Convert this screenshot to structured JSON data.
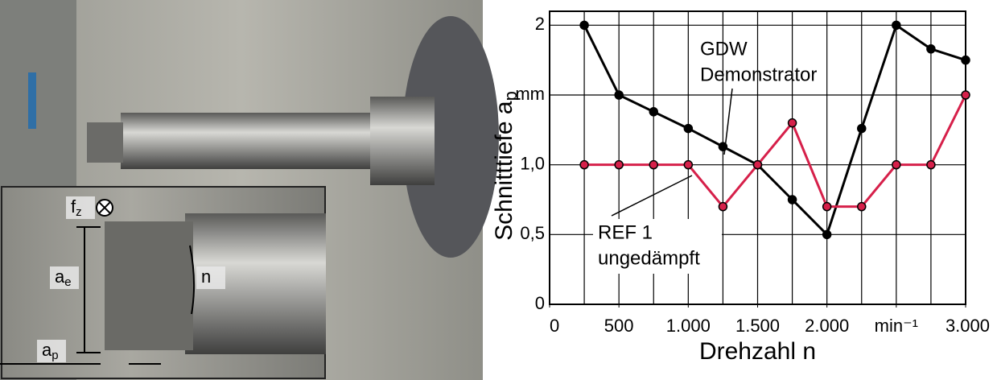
{
  "chart_data": {
    "type": "line",
    "x_label": "Drehzahl n",
    "y_label": {
      "text": "Schnitttiefe a",
      "sub": "p"
    },
    "x": [
      250,
      500,
      750,
      1000,
      1250,
      1500,
      1750,
      2000,
      2250,
      2500,
      2750,
      3000
    ],
    "series": [
      {
        "name": [
          "GDW",
          "Demonstrator"
        ],
        "color": "#000000",
        "values": [
          2,
          1.5,
          1.38,
          1.26,
          1.13,
          1.0,
          0.75,
          0.5,
          1.26,
          2,
          1.83,
          1.75
        ]
      },
      {
        "name": [
          "REF 1",
          "ungedämpft"
        ],
        "color": "#d6204a",
        "values": [
          1.0,
          1.0,
          1.0,
          1.0,
          0.7,
          1.0,
          1.3,
          0.7,
          0.7,
          1.0,
          1.0,
          1.5
        ]
      }
    ],
    "xlim": [
      0,
      3000
    ],
    "xticks": [
      0,
      500,
      {
        "value": 1000,
        "label": "1.000"
      },
      {
        "value": 1500,
        "label": "1.500"
      },
      {
        "value": 2000,
        "label": "2.000"
      },
      {
        "value": 2500,
        "label": "min⁻¹"
      },
      {
        "value": 3000,
        "label": "3.000"
      }
    ],
    "xgrid": [
      250,
      500,
      750,
      1000,
      1250,
      1500,
      1750,
      2000,
      2250,
      2500,
      2750,
      3000
    ],
    "ylim": [
      0,
      2.1
    ],
    "yticks": [
      0,
      {
        "value": 0.5,
        "label": "0,5"
      },
      {
        "value": 1,
        "label": "1,0"
      },
      {
        "value": 1.5,
        "label": "mm"
      },
      2
    ],
    "grid": true
  },
  "photo": {
    "labels": [
      {
        "text": "f",
        "sub": "z"
      },
      {
        "text": "a",
        "sub": "e"
      },
      {
        "text": "n",
        "sub": ""
      },
      {
        "text": "a",
        "sub": "p"
      }
    ]
  }
}
